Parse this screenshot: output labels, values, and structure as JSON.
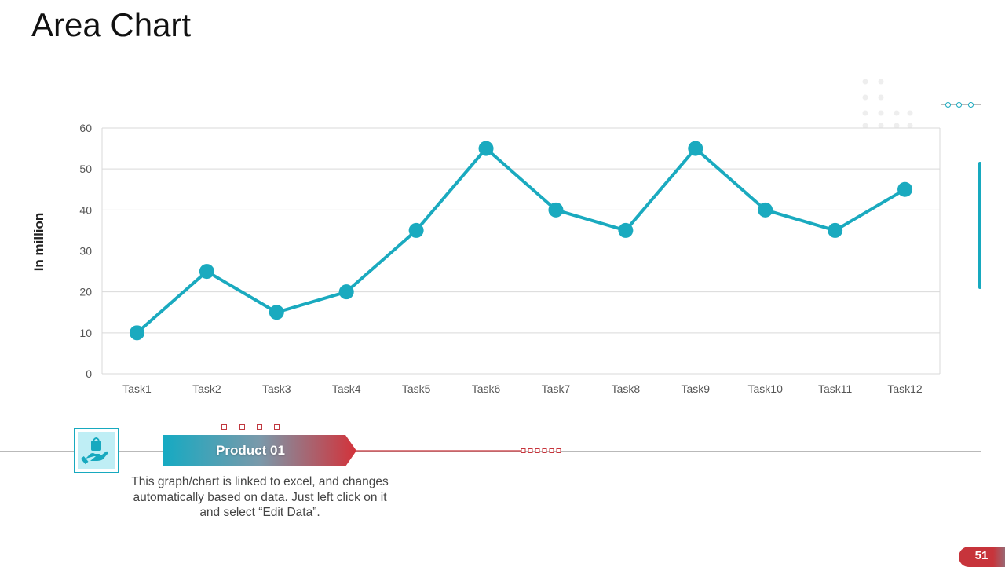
{
  "slide": {
    "title": "Area Chart",
    "page_number": "51"
  },
  "product": {
    "label": "Product 01",
    "description": "This graph/chart is linked to excel, and changes automatically based on data. Just left click on it and select “Edit Data”."
  },
  "colors": {
    "series": "#1aaabf",
    "accent_red": "#c7343b",
    "grid": "#d9d9d9"
  },
  "icons": {
    "product": "hand-holding-bag-icon"
  },
  "chart_data": {
    "type": "line",
    "title": "",
    "xlabel": "",
    "ylabel": "In million",
    "categories": [
      "Task1",
      "Task2",
      "Task3",
      "Task4",
      "Task5",
      "Task6",
      "Task7",
      "Task8",
      "Task9",
      "Task10",
      "Task11",
      "Task12"
    ],
    "series": [
      {
        "values": [
          10,
          25,
          15,
          20,
          35,
          55,
          40,
          35,
          55,
          40,
          35,
          45
        ]
      }
    ],
    "ylim": [
      0,
      60
    ],
    "yticks": [
      0,
      10,
      20,
      30,
      40,
      50,
      60
    ],
    "grid": true,
    "legend": "none",
    "markers": true
  }
}
